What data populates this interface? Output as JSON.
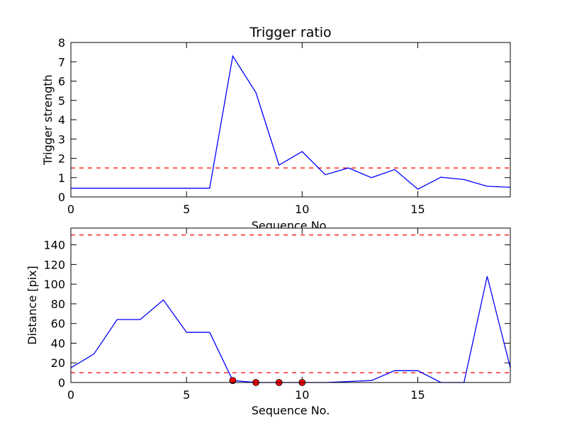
{
  "chart_data": [
    {
      "type": "line",
      "title": "Trigger ratio",
      "xlabel": "Sequence No.",
      "ylabel": "Trigger strength",
      "xlim": [
        0,
        19
      ],
      "ylim": [
        0,
        8
      ],
      "xticks": [
        0,
        5,
        10,
        15
      ],
      "xtick_labels": [
        "0",
        "5",
        "10",
        "15"
      ],
      "yticks": [
        0,
        1,
        2,
        3,
        4,
        5,
        6,
        7,
        8
      ],
      "ytick_labels": [
        "0",
        "1",
        "2",
        "3",
        "4",
        "5",
        "6",
        "7",
        "8"
      ],
      "grid": false,
      "series": [
        {
          "color": "#0000ff",
          "style": "solid",
          "x": [
            0,
            1,
            2,
            3,
            4,
            5,
            6,
            7,
            8,
            9,
            10,
            11,
            12,
            13,
            14,
            15,
            16,
            17,
            18,
            19
          ],
          "y": [
            0.45,
            0.45,
            0.45,
            0.45,
            0.45,
            0.45,
            0.45,
            7.3,
            5.4,
            1.65,
            2.35,
            1.15,
            1.5,
            1.0,
            1.42,
            0.4,
            1.02,
            0.9,
            0.55,
            0.5
          ]
        }
      ],
      "hlines": [
        {
          "y": 1.5,
          "color": "#ff0000",
          "style": "dashed"
        }
      ]
    },
    {
      "type": "line",
      "title": "",
      "xlabel": "Sequence No.",
      "ylabel": "Distance [pix]",
      "xlim": [
        0,
        19
      ],
      "ylim": [
        0,
        157
      ],
      "xticks": [
        0,
        5,
        10,
        15
      ],
      "xtick_labels": [
        "0",
        "5",
        "10",
        "15"
      ],
      "yticks": [
        0,
        20,
        40,
        60,
        80,
        100,
        120,
        140
      ],
      "ytick_labels": [
        "0",
        "20",
        "40",
        "60",
        "80",
        "100",
        "120",
        "140"
      ],
      "grid": false,
      "series": [
        {
          "color": "#0000ff",
          "style": "solid",
          "x": [
            0,
            1,
            2,
            3,
            4,
            5,
            6,
            7,
            8,
            9,
            10,
            11,
            12,
            13,
            14,
            15,
            16,
            17,
            18,
            19
          ],
          "y": [
            15,
            29,
            64,
            64,
            84,
            51,
            51,
            2,
            0,
            0,
            0,
            0,
            1,
            2,
            12,
            12,
            0,
            0,
            108,
            15
          ]
        },
        {
          "color": "#ff0000",
          "style": "markers",
          "x": [
            7,
            8,
            9,
            10
          ],
          "y": [
            2,
            0,
            0,
            0
          ]
        }
      ],
      "hlines": [
        {
          "y": 150,
          "color": "#ff0000",
          "style": "dashed"
        },
        {
          "y": 10,
          "color": "#ff0000",
          "style": "dashed"
        }
      ]
    }
  ]
}
